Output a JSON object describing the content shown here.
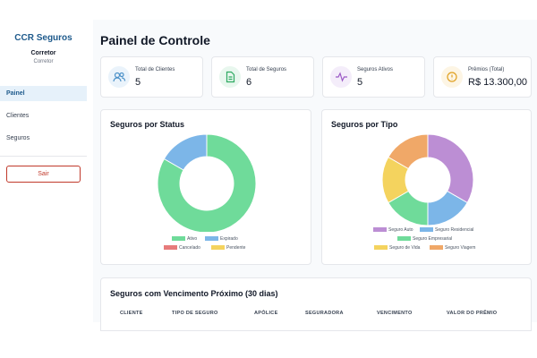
{
  "sidebar": {
    "brand": "CCR Seguros",
    "user_name": "Corretor",
    "user_role": "Corretor",
    "nav": [
      {
        "label": "Painel",
        "active": true
      },
      {
        "label": "Clientes",
        "active": false
      },
      {
        "label": "Seguros",
        "active": false
      }
    ],
    "logout_label": "Sair"
  },
  "header": {
    "title": "Painel de Controle"
  },
  "cards": [
    {
      "label": "Total de Clientes",
      "value": "5",
      "icon": "users-icon"
    },
    {
      "label": "Total de Seguros",
      "value": "6",
      "icon": "document-icon"
    },
    {
      "label": "Seguros Ativos",
      "value": "5",
      "icon": "activity-icon"
    },
    {
      "label": "Prêmios (Total)",
      "value": "R$ 13.300,00",
      "icon": "dollar-icon"
    }
  ],
  "chart_data": [
    {
      "type": "pie",
      "title": "Seguros por Status",
      "categories": [
        "Ativo",
        "Expirado",
        "Cancelado",
        "Pendente"
      ],
      "values": [
        5,
        1,
        0,
        0
      ],
      "colors": [
        "#6fdb9a",
        "#7cb6e8",
        "#e77b7b",
        "#f4d35e"
      ]
    },
    {
      "type": "pie",
      "title": "Seguros por Tipo",
      "categories": [
        "Seguro Auto",
        "Seguro Residencial",
        "Seguro Empresarial",
        "Seguro de Vida",
        "Seguro Viagem"
      ],
      "values": [
        2,
        1,
        1,
        1,
        1
      ],
      "colors": [
        "#bc8ed4",
        "#7cb6e8",
        "#6fdb9a",
        "#f4d35e",
        "#f0a868"
      ]
    }
  ],
  "table": {
    "title": "Seguros com Vencimento Próximo (30 dias)",
    "columns": [
      "CLIENTE",
      "TIPO DE SEGURO",
      "APÓLICE",
      "SEGURADORA",
      "VENCIMENTO",
      "VALOR DO PRÊMIO"
    ]
  }
}
